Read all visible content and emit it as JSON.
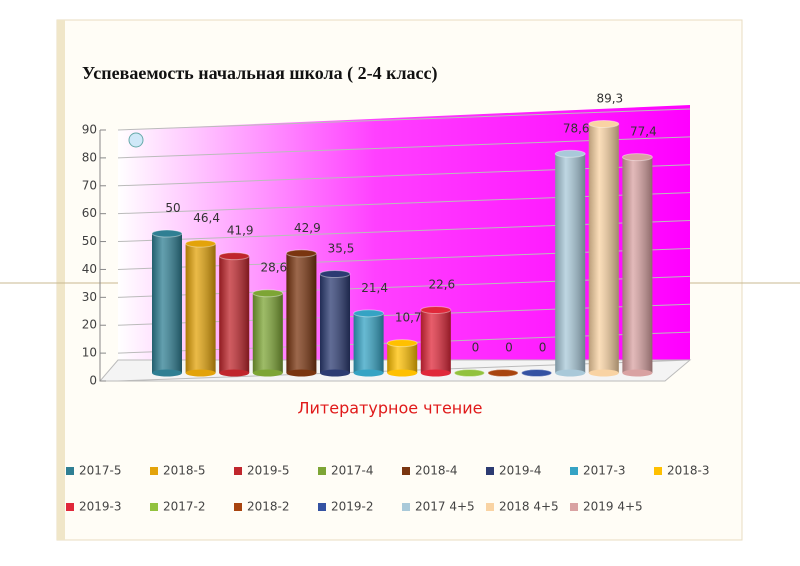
{
  "chart_data": {
    "type": "bar",
    "title": "Успеваемость начальная школа ( 2-4  класс)",
    "categories": [
      "Литературное чтение"
    ],
    "ylim": [
      0,
      90
    ],
    "yticks": [
      0,
      10,
      20,
      30,
      40,
      50,
      60,
      70,
      80,
      90
    ],
    "grid": true,
    "legend": "bottom",
    "series": [
      {
        "name": "2017-5",
        "color": "#2f7f93",
        "values": [
          50
        ]
      },
      {
        "name": "2018-5",
        "color": "#e3a30a",
        "values": [
          46.4
        ],
        "value_labels": [
          "46,4"
        ]
      },
      {
        "name": "2019-5",
        "color": "#c0262c",
        "values": [
          41.9
        ],
        "value_labels": [
          "41,9"
        ]
      },
      {
        "name": "2017-4",
        "color": "#7da535",
        "values": [
          28.6
        ],
        "value_labels": [
          "28,6"
        ]
      },
      {
        "name": "2018-4",
        "color": "#7a3510",
        "values": [
          42.9
        ],
        "value_labels": [
          "42,9"
        ]
      },
      {
        "name": "2019-4",
        "color": "#2c3b72",
        "values": [
          35.5
        ],
        "value_labels": [
          "35,5"
        ]
      },
      {
        "name": "2017-3",
        "color": "#35a3c4",
        "values": [
          21.4
        ],
        "value_labels": [
          "21,4"
        ]
      },
      {
        "name": "2018-3",
        "color": "#ffc000",
        "values": [
          10.7
        ],
        "value_labels": [
          "10,7"
        ]
      },
      {
        "name": "2019-3",
        "color": "#e0283a",
        "values": [
          22.6
        ],
        "value_labels": [
          "22,6"
        ]
      },
      {
        "name": "2017-2",
        "color": "#92c23e",
        "values": [
          0
        ]
      },
      {
        "name": "2018-2",
        "color": "#a8440f",
        "values": [
          0
        ]
      },
      {
        "name": "2019-2",
        "color": "#3452a2",
        "values": [
          0
        ]
      },
      {
        "name": "2017 4+5",
        "color": "#a9c9d9",
        "values": [
          78.6
        ],
        "value_labels": [
          "78,6"
        ]
      },
      {
        "name": "2018 4+5",
        "color": "#f9d3a3",
        "values": [
          89.3
        ],
        "value_labels": [
          "89,3"
        ]
      },
      {
        "name": "2019 4+5",
        "color": "#d9a2a2",
        "values": [
          77.4
        ],
        "value_labels": [
          "77,4"
        ]
      }
    ]
  }
}
